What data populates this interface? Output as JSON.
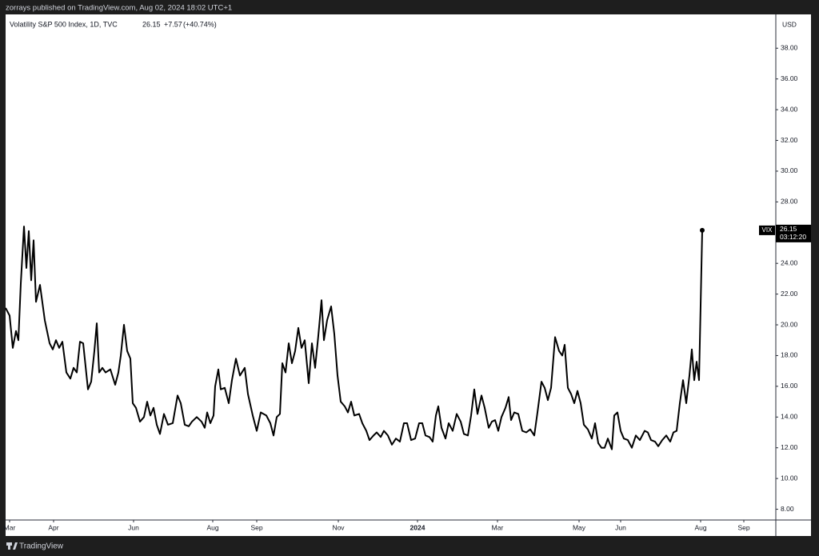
{
  "chart_data": {
    "type": "line",
    "caption": "zorrays published on TradingView.com, Aug 02, 2024 18:02 UTC+1",
    "title": "Volatility S&P 500 Index, 1D, TVC",
    "change": "+7.57",
    "change_percent": "(+40.74%)",
    "currency": "USD",
    "countdown": "03:12:20",
    "brand": "TradingView",
    "xlim": [
      0,
      963
    ],
    "ylim": [
      7.3,
      40.2
    ],
    "xticks": [
      {
        "value": 5,
        "label": "Mar"
      },
      {
        "value": 60,
        "label": "Apr"
      },
      {
        "value": 160,
        "label": "Jun"
      },
      {
        "value": 259,
        "label": "Aug"
      },
      {
        "value": 314,
        "label": "Sep"
      },
      {
        "value": 416,
        "label": "Nov"
      },
      {
        "value": 515,
        "label": "2024"
      },
      {
        "value": 615,
        "label": "Mar"
      },
      {
        "value": 717,
        "label": "May"
      },
      {
        "value": 769,
        "label": "Jun"
      },
      {
        "value": 869,
        "label": "Aug"
      },
      {
        "value": 923,
        "label": "Sep"
      }
    ],
    "yticks": [
      {
        "value": 8,
        "label": "8.00"
      },
      {
        "value": 10,
        "label": "10.00"
      },
      {
        "value": 12,
        "label": "12.00"
      },
      {
        "value": 14,
        "label": "14.00"
      },
      {
        "value": 16,
        "label": "16.00"
      },
      {
        "value": 18,
        "label": "18.00"
      },
      {
        "value": 20,
        "label": "20.00"
      },
      {
        "value": 22,
        "label": "22.00"
      },
      {
        "value": 24,
        "label": "24.00"
      },
      {
        "value": 26,
        "label": "26.00"
      },
      {
        "value": 28,
        "label": "28.00"
      },
      {
        "value": 30,
        "label": "30.00"
      },
      {
        "value": 32,
        "label": "32.00"
      },
      {
        "value": 34,
        "label": "34.00"
      },
      {
        "value": 36,
        "label": "36.00"
      },
      {
        "value": 38,
        "label": "38.00"
      }
    ],
    "series": [
      {
        "name": "VIX",
        "color": "#000000",
        "x": [
          0,
          5,
          9,
          13,
          16,
          19,
          23,
          26,
          29,
          32,
          35,
          38,
          43,
          49,
          55,
          59,
          63,
          67,
          71,
          76,
          81,
          85,
          89,
          93,
          97,
          103,
          107,
          111,
          114,
          117,
          121,
          125,
          131,
          137,
          141,
          144,
          148,
          152,
          156,
          159,
          163,
          168,
          173,
          177,
          181,
          185,
          189,
          193,
          198,
          203,
          209,
          215,
          219,
          224,
          229,
          233,
          239,
          245,
          249,
          252,
          256,
          260,
          262,
          266,
          269,
          274,
          279,
          283,
          288,
          293,
          299,
          303,
          309,
          314,
          319,
          326,
          331,
          335,
          339,
          343,
          346,
          350,
          354,
          358,
          362,
          366,
          370,
          374,
          379,
          383,
          387,
          391,
          395,
          398,
          402,
          407,
          411,
          415,
          419,
          424,
          428,
          432,
          436,
          442,
          446,
          451,
          455,
          460,
          464,
          469,
          473,
          478,
          483,
          488,
          493,
          498,
          502,
          507,
          512,
          517,
          521,
          525,
          530,
          534,
          538,
          541,
          545,
          550,
          554,
          559,
          564,
          569,
          573,
          578,
          582,
          586,
          590,
          595,
          599,
          604,
          608,
          612,
          616,
          620,
          625,
          629,
          632,
          636,
          641,
          646,
          651,
          656,
          661,
          665,
          670,
          674,
          678,
          682,
          687,
          692,
          696,
          699,
          703,
          707,
          711,
          715,
          719,
          723,
          728,
          733,
          737,
          741,
          745,
          749,
          753,
          758,
          761,
          765,
          769,
          773,
          778,
          783,
          788,
          793,
          799,
          803,
          807,
          812,
          816,
          821,
          826,
          831,
          835,
          839,
          843,
          847,
          851,
          855,
          858,
          861,
          864,
          867,
          871
        ],
        "values": [
          21.1,
          20.6,
          18.5,
          19.6,
          19.0,
          22.7,
          26.4,
          23.7,
          26.1,
          22.9,
          25.5,
          21.5,
          22.6,
          20.3,
          18.8,
          18.4,
          19.0,
          18.5,
          18.9,
          16.9,
          16.5,
          17.2,
          16.9,
          18.9,
          18.8,
          15.8,
          16.3,
          18.3,
          20.1,
          16.9,
          17.2,
          16.9,
          17.1,
          16.1,
          16.9,
          18.0,
          20.0,
          18.3,
          17.8,
          14.9,
          14.6,
          13.7,
          14.0,
          15.0,
          14.1,
          14.6,
          13.5,
          12.9,
          14.2,
          13.5,
          13.6,
          15.4,
          14.9,
          13.5,
          13.4,
          13.7,
          14.0,
          13.7,
          13.3,
          14.3,
          13.6,
          14.1,
          16.0,
          17.1,
          15.8,
          15.9,
          14.9,
          16.4,
          17.8,
          16.7,
          17.2,
          15.5,
          14.1,
          13.1,
          14.3,
          14.1,
          13.6,
          12.8,
          14.0,
          14.2,
          17.5,
          16.9,
          18.8,
          17.5,
          18.3,
          19.8,
          18.5,
          19.0,
          16.2,
          18.8,
          17.2,
          19.3,
          21.6,
          19.0,
          20.3,
          21.2,
          19.4,
          16.7,
          15.0,
          14.7,
          14.3,
          15.0,
          14.1,
          14.2,
          13.6,
          13.1,
          12.5,
          12.8,
          13.0,
          12.7,
          13.1,
          12.8,
          12.2,
          12.6,
          12.4,
          13.6,
          13.6,
          12.5,
          12.6,
          13.6,
          13.6,
          12.8,
          12.7,
          12.4,
          14.1,
          14.7,
          13.3,
          12.6,
          13.6,
          13.1,
          14.2,
          13.7,
          12.9,
          12.8,
          14.1,
          15.8,
          14.2,
          15.4,
          14.6,
          13.3,
          13.7,
          13.8,
          13.1,
          14.0,
          14.6,
          15.3,
          13.8,
          14.3,
          14.2,
          13.1,
          13.0,
          13.2,
          12.8,
          14.3,
          16.3,
          15.9,
          15.1,
          15.9,
          19.2,
          18.3,
          18.0,
          18.7,
          15.9,
          15.5,
          14.9,
          15.7,
          14.9,
          13.5,
          13.2,
          12.6,
          13.6,
          12.3,
          12.0,
          12.0,
          12.6,
          11.9,
          14.1,
          14.3,
          13.1,
          12.6,
          12.5,
          12.0,
          12.8,
          12.5,
          13.1,
          13.0,
          12.5,
          12.4,
          12.1,
          12.5,
          12.8,
          12.4,
          13.0,
          13.1,
          14.9,
          16.4,
          14.9,
          16.7,
          18.4,
          16.4,
          17.6,
          16.4,
          26.15
        ]
      }
    ]
  }
}
